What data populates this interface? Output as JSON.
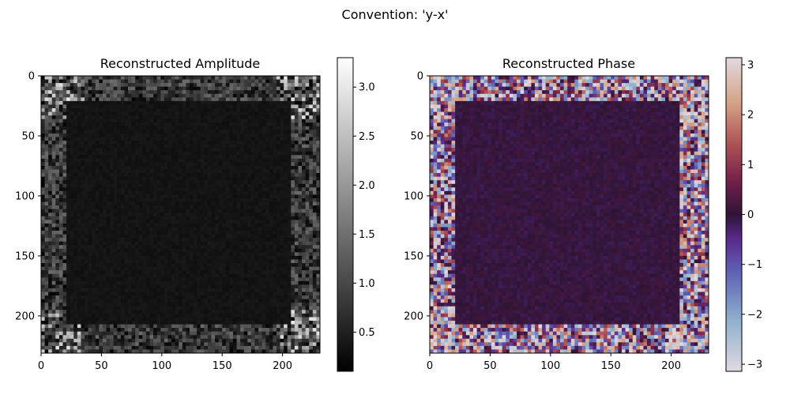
{
  "figure": {
    "suptitle": "Convention: 'y-x'"
  },
  "chart_data": [
    {
      "type": "heatmap",
      "title": "Reconstructed Amplitude",
      "xlabel": "",
      "ylabel": "",
      "xlim": [
        0,
        231
      ],
      "ylim": [
        231,
        0
      ],
      "xticks": [
        0,
        50,
        100,
        150,
        200
      ],
      "yticks": [
        0,
        50,
        100,
        150,
        200
      ],
      "colormap": "gray",
      "colors": {
        "low": "#000000",
        "high": "#ffffff"
      },
      "colorbar": {
        "min": 0.1,
        "max": 3.3,
        "ticks": [
          0.5,
          1.0,
          1.5,
          2.0,
          2.5,
          3.0
        ],
        "tick_labels": [
          "0.5",
          "1.0",
          "1.5",
          "2.0",
          "2.5",
          "3.0"
        ]
      },
      "regions": {
        "interior_value": 0.35,
        "border_value": 0.8,
        "interior_range": [
          22,
          208
        ],
        "corner_highlight_value": 2.8
      }
    },
    {
      "type": "heatmap",
      "title": "Reconstructed Phase",
      "xlabel": "",
      "ylabel": "",
      "xlim": [
        0,
        231
      ],
      "ylim": [
        231,
        0
      ],
      "xticks": [
        0,
        50,
        100,
        150,
        200
      ],
      "yticks": [
        0,
        50,
        100,
        150,
        200
      ],
      "colormap": "twilight_shifted",
      "colors": {
        "min": "#e2d9e2",
        "low": "#6b9ac4",
        "mid_low": "#5d2d91",
        "zero": "#301437",
        "mid_high": "#9c3a4c",
        "high": "#d29b7c",
        "max": "#e2d9e2"
      },
      "colorbar": {
        "min": -3.14159,
        "max": 3.14159,
        "ticks": [
          -3,
          -2,
          -1,
          0,
          1,
          2,
          3
        ],
        "tick_labels": [
          "−3",
          "−2",
          "−1",
          "0",
          "1",
          "2",
          "3"
        ]
      },
      "regions": {
        "interior_value": 0.0,
        "interior_range": [
          22,
          208
        ]
      }
    }
  ]
}
